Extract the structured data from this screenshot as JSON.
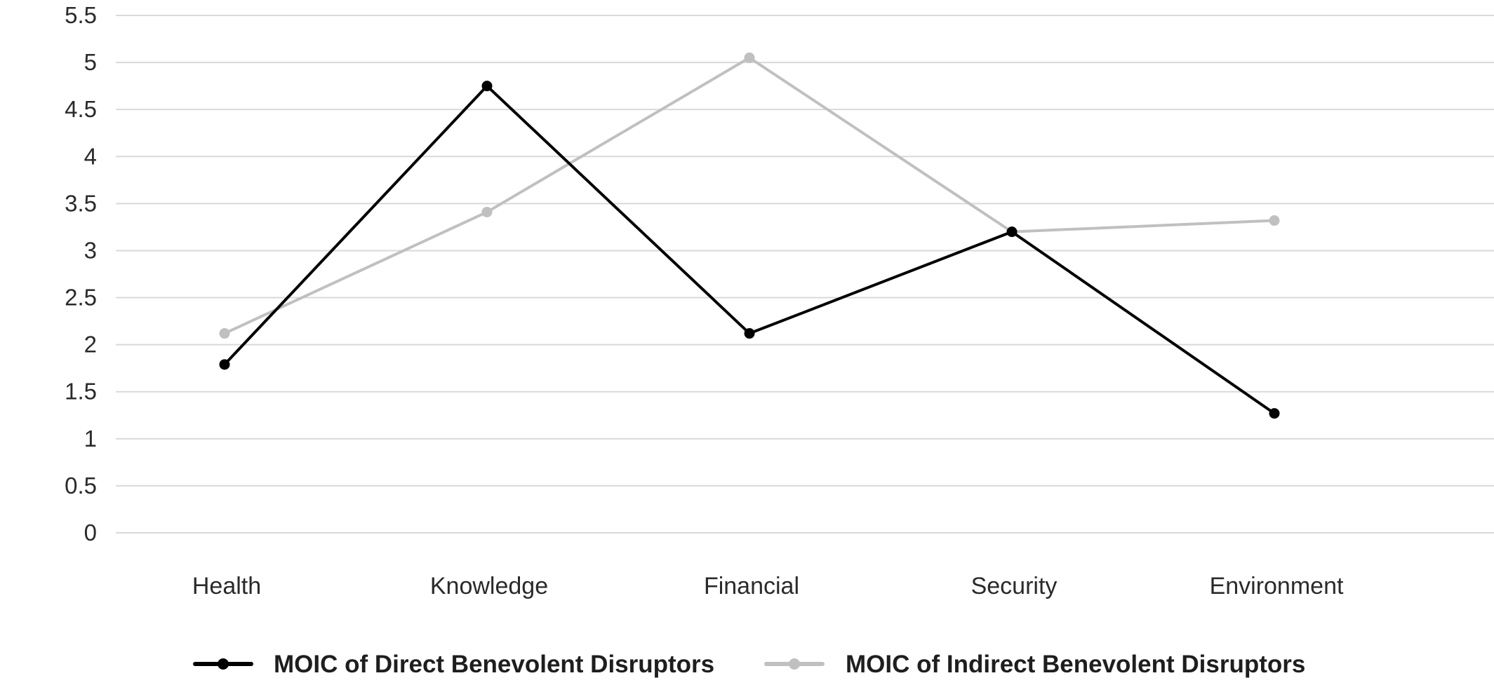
{
  "chart_data": {
    "type": "line",
    "title": "",
    "xlabel": "",
    "ylabel": "",
    "categories": [
      "Health",
      "Knowledge",
      "Financial",
      "Security",
      "Environment"
    ],
    "ylim": [
      0,
      5.5
    ],
    "yticks": [
      "0",
      "0.5",
      "1",
      "1.5",
      "2",
      "2.5",
      "3",
      "3.5",
      "4",
      "4.5",
      "5",
      "5.5"
    ],
    "grid": true,
    "legend_position": "bottom",
    "series": [
      {
        "name": "MOIC of Direct Benevolent Disruptors",
        "color": "#000000",
        "values": [
          1.79,
          4.75,
          2.12,
          3.2,
          1.27
        ]
      },
      {
        "name": "MOIC of Indirect Benevolent Disruptors",
        "color": "#c0c0c0",
        "values": [
          2.12,
          3.41,
          5.05,
          3.2,
          3.32
        ]
      }
    ]
  }
}
